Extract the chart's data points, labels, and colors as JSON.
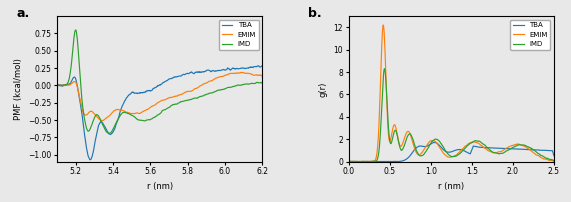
{
  "panel_a": {
    "xlabel": "r (nm)",
    "ylabel": "PMF (kcal/mol)",
    "xlim": [
      5.1,
      6.2
    ],
    "ylim": [
      -1.1,
      1.0
    ],
    "xticks": [
      5.2,
      5.4,
      5.6,
      5.8,
      6.0,
      6.2
    ],
    "yticks": [
      -1.0,
      -0.75,
      -0.5,
      -0.25,
      0.0,
      0.25,
      0.5,
      0.75
    ],
    "label": "a.",
    "colors": {
      "TBA": "#1f77b4",
      "EMIM": "#ff7f0e",
      "IMD": "#2ca02c"
    },
    "legend": [
      "TBA",
      "EMIM",
      "IMD"
    ]
  },
  "panel_b": {
    "xlabel": "r (nm)",
    "ylabel": "g(r)",
    "xlim": [
      0.0,
      2.5
    ],
    "ylim": [
      0,
      13
    ],
    "xticks": [
      0.0,
      0.5,
      1.0,
      1.5,
      2.0,
      2.5
    ],
    "yticks": [
      0,
      2,
      4,
      6,
      8,
      10,
      12
    ],
    "label": "b.",
    "colors": {
      "TBA": "#1f77b4",
      "EMIM": "#ff7f0e",
      "IMD": "#2ca02c"
    },
    "legend": [
      "TBA",
      "EMIM",
      "IMD"
    ]
  },
  "fig_bg": "#e8e8e8",
  "figsize": [
    5.71,
    2.02
  ],
  "dpi": 100
}
